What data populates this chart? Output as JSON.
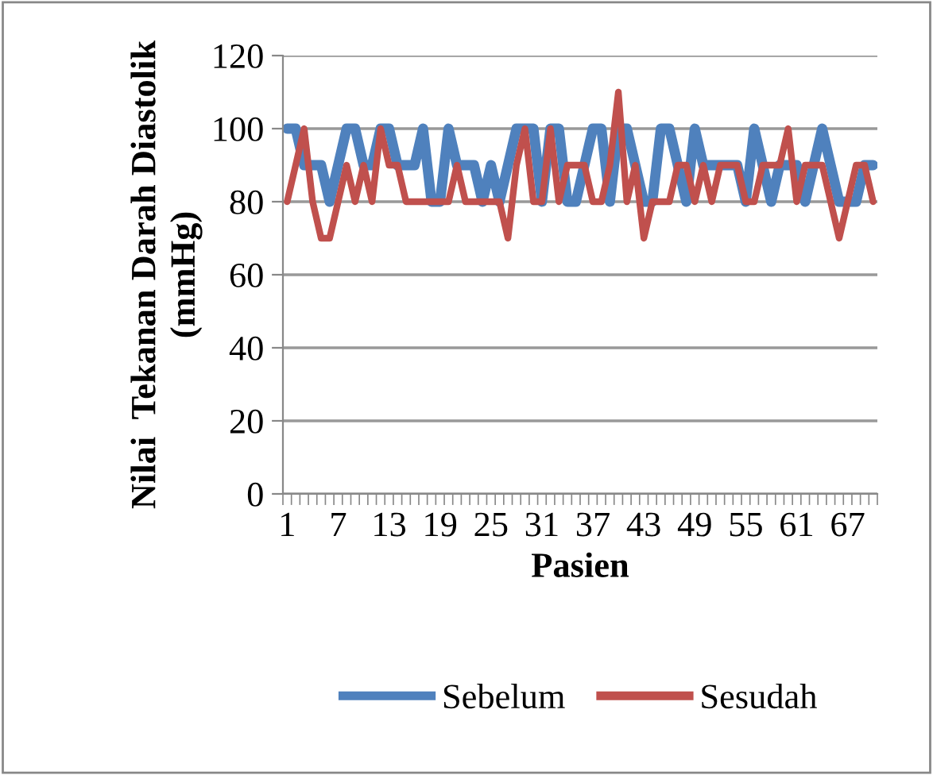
{
  "chart_data": {
    "type": "line",
    "xlabel": "Pasien",
    "ylabel": "Nilai  Tekanan Darah Diastolik\n(mmHg)",
    "categories": [
      "1",
      null,
      null,
      null,
      null,
      null,
      "7",
      null,
      null,
      null,
      null,
      null,
      "13",
      null,
      null,
      null,
      null,
      null,
      "19",
      null,
      null,
      null,
      null,
      null,
      "25",
      null,
      null,
      null,
      null,
      null,
      "31",
      null,
      null,
      null,
      null,
      null,
      "37",
      null,
      null,
      null,
      null,
      null,
      "43",
      null,
      null,
      null,
      null,
      null,
      "49",
      null,
      null,
      null,
      null,
      null,
      "55",
      null,
      null,
      null,
      null,
      null,
      "61",
      null,
      null,
      null,
      null,
      null,
      "67",
      null,
      null,
      null
    ],
    "series": [
      {
        "name": "Sebelum",
        "color": "#4f81bd",
        "values": [
          100,
          100,
          90,
          90,
          90,
          80,
          90,
          100,
          100,
          90,
          90,
          100,
          100,
          90,
          90,
          90,
          100,
          80,
          80,
          100,
          90,
          90,
          90,
          80,
          90,
          80,
          90,
          100,
          100,
          100,
          80,
          100,
          100,
          80,
          80,
          90,
          100,
          100,
          80,
          100,
          100,
          90,
          80,
          80,
          100,
          100,
          90,
          80,
          100,
          90,
          90,
          90,
          90,
          90,
          80,
          100,
          90,
          80,
          90,
          90,
          90,
          80,
          90,
          100,
          90,
          80,
          80,
          80,
          90,
          90
        ]
      },
      {
        "name": "Sesudah",
        "color": "#c0504d",
        "values": [
          80,
          90,
          100,
          80,
          70,
          70,
          80,
          90,
          80,
          90,
          80,
          100,
          90,
          90,
          80,
          80,
          80,
          80,
          80,
          80,
          90,
          80,
          80,
          80,
          80,
          80,
          70,
          90,
          100,
          80,
          80,
          100,
          80,
          90,
          90,
          90,
          80,
          80,
          90,
          110,
          80,
          90,
          70,
          80,
          80,
          80,
          90,
          90,
          80,
          90,
          80,
          90,
          90,
          90,
          80,
          80,
          90,
          90,
          90,
          100,
          80,
          90,
          90,
          90,
          80,
          70,
          80,
          90,
          90,
          80
        ]
      }
    ],
    "ylim": [
      0,
      120
    ],
    "yticks": [
      0,
      20,
      40,
      60,
      80,
      100,
      120
    ],
    "grid": "y",
    "legend": "bottom",
    "line_style": "solid",
    "marker": "none"
  }
}
